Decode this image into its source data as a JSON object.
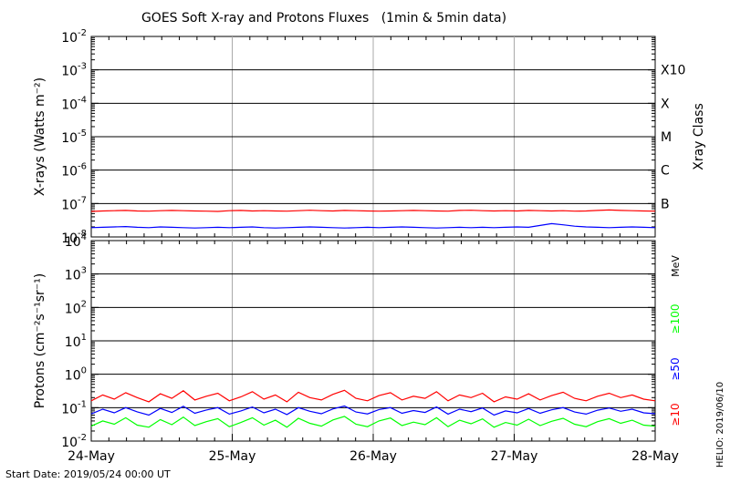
{
  "chart_data": [
    {
      "type": "line",
      "panel": "xray",
      "title": "GOES Soft X-ray and Protons Fluxes   (1min & 5min data)",
      "ylabel": "X-rays (Watts m⁻²)",
      "right_label": "Xray Class",
      "y_scale": "log",
      "ylim": [
        "1e-8",
        "1e-2"
      ],
      "y_ticks": [
        {
          "base": "10",
          "exp": "-2",
          "value": 0.01
        },
        {
          "base": "10",
          "exp": "-3",
          "value": 0.001
        },
        {
          "base": "10",
          "exp": "-4",
          "value": 0.0001
        },
        {
          "base": "10",
          "exp": "-5",
          "value": 1e-05
        },
        {
          "base": "10",
          "exp": "-6",
          "value": 1e-06
        },
        {
          "base": "10",
          "exp": "-7",
          "value": 1e-07
        },
        {
          "base": "10",
          "exp": "-8",
          "value": 1e-08
        }
      ],
      "class_labels": [
        {
          "label": "X10",
          "value": 0.001
        },
        {
          "label": "X",
          "value": 0.0001
        },
        {
          "label": "M",
          "value": 1e-05
        },
        {
          "label": "C",
          "value": 1e-06
        },
        {
          "label": "B",
          "value": 1e-07
        }
      ],
      "series": [
        {
          "color": "#ff0000",
          "values": [
            5.8e-08,
            6e-08,
            6.1e-08,
            6.2e-08,
            6e-08,
            5.9e-08,
            6.1e-08,
            6.2e-08,
            6.1e-08,
            6e-08,
            5.9e-08,
            5.8e-08,
            6.1e-08,
            6.2e-08,
            6e-08,
            6.1e-08,
            6e-08,
            5.9e-08,
            6.1e-08,
            6.3e-08,
            6.1e-08,
            6e-08,
            6.2e-08,
            6.1e-08,
            6e-08,
            5.9e-08,
            6e-08,
            6.1e-08,
            6.2e-08,
            6.1e-08,
            6e-08,
            5.9e-08,
            6.2e-08,
            6.3e-08,
            6.1e-08,
            6e-08,
            6.1e-08,
            6e-08,
            6.2e-08,
            6.1e-08,
            6e-08,
            6.1e-08,
            5.9e-08,
            6e-08,
            6.2e-08,
            6.4e-08,
            6.2e-08,
            6.1e-08,
            6e-08,
            5.9e-08
          ]
        },
        {
          "color": "#0000ff",
          "values": [
            1.9e-08,
            1.95e-08,
            2e-08,
            2.05e-08,
            1.95e-08,
            1.9e-08,
            2e-08,
            1.95e-08,
            1.9e-08,
            1.85e-08,
            1.9e-08,
            1.95e-08,
            1.9e-08,
            1.95e-08,
            2e-08,
            1.9e-08,
            1.85e-08,
            1.9e-08,
            1.95e-08,
            2e-08,
            1.95e-08,
            1.9e-08,
            1.85e-08,
            1.9e-08,
            1.95e-08,
            1.9e-08,
            1.95e-08,
            2e-08,
            1.95e-08,
            1.9e-08,
            1.85e-08,
            1.9e-08,
            1.95e-08,
            1.9e-08,
            1.95e-08,
            1.9e-08,
            1.95e-08,
            2e-08,
            1.95e-08,
            2.2e-08,
            2.5e-08,
            2.3e-08,
            2.1e-08,
            2e-08,
            1.95e-08,
            1.9e-08,
            1.95e-08,
            2e-08,
            1.95e-08,
            1.9e-08
          ]
        }
      ]
    },
    {
      "type": "line",
      "panel": "protons",
      "ylabel": "Protons (cm⁻²s⁻¹sr⁻¹)",
      "y_scale": "log",
      "ylim": [
        "1e-2",
        "1e4"
      ],
      "y_ticks": [
        {
          "base": "10",
          "exp": "4",
          "value": 10000.0
        },
        {
          "base": "10",
          "exp": "3",
          "value": 1000.0
        },
        {
          "base": "10",
          "exp": "2",
          "value": 100.0
        },
        {
          "base": "10",
          "exp": "1",
          "value": 10.0
        },
        {
          "base": "10",
          "exp": "0",
          "value": 1.0
        },
        {
          "base": "10",
          "exp": "-1",
          "value": 0.1
        },
        {
          "base": "10",
          "exp": "-2",
          "value": 0.01
        }
      ],
      "threshold_line": 10,
      "right_labels": [
        {
          "text": "MeV",
          "color": "#000000"
        },
        {
          "text": "≥100",
          "color": "#00ff00"
        },
        {
          "text": "≥50",
          "color": "#0000ff"
        },
        {
          "text": "≥10",
          "color": "#ff0000"
        }
      ],
      "series": [
        {
          "name": "≥10",
          "color": "#ff0000",
          "values": [
            0.16,
            0.24,
            0.18,
            0.28,
            0.2,
            0.15,
            0.26,
            0.19,
            0.32,
            0.17,
            0.22,
            0.27,
            0.16,
            0.21,
            0.3,
            0.18,
            0.24,
            0.15,
            0.29,
            0.2,
            0.17,
            0.25,
            0.33,
            0.19,
            0.16,
            0.23,
            0.28,
            0.17,
            0.22,
            0.19,
            0.3,
            0.16,
            0.24,
            0.2,
            0.27,
            0.15,
            0.21,
            0.18,
            0.26,
            0.17,
            0.23,
            0.29,
            0.19,
            0.16,
            0.22,
            0.27,
            0.2,
            0.24,
            0.18,
            0.16
          ]
        },
        {
          "name": "≥50",
          "color": "#0000ff",
          "values": [
            0.065,
            0.09,
            0.07,
            0.1,
            0.075,
            0.06,
            0.095,
            0.072,
            0.11,
            0.068,
            0.085,
            0.1,
            0.064,
            0.08,
            0.105,
            0.07,
            0.09,
            0.062,
            0.1,
            0.078,
            0.066,
            0.092,
            0.112,
            0.074,
            0.065,
            0.088,
            0.1,
            0.068,
            0.082,
            0.072,
            0.105,
            0.064,
            0.09,
            0.076,
            0.098,
            0.06,
            0.08,
            0.07,
            0.094,
            0.068,
            0.086,
            0.1,
            0.074,
            0.064,
            0.084,
            0.098,
            0.078,
            0.09,
            0.07,
            0.066
          ]
        },
        {
          "name": "≥100",
          "color": "#00ff00",
          "values": [
            0.028,
            0.04,
            0.032,
            0.05,
            0.03,
            0.026,
            0.044,
            0.031,
            0.052,
            0.029,
            0.038,
            0.047,
            0.027,
            0.036,
            0.05,
            0.03,
            0.042,
            0.026,
            0.048,
            0.034,
            0.028,
            0.043,
            0.055,
            0.032,
            0.027,
            0.04,
            0.049,
            0.029,
            0.037,
            0.031,
            0.05,
            0.027,
            0.042,
            0.033,
            0.046,
            0.026,
            0.036,
            0.03,
            0.045,
            0.029,
            0.039,
            0.048,
            0.032,
            0.027,
            0.038,
            0.047,
            0.034,
            0.042,
            0.03,
            0.028
          ]
        }
      ]
    }
  ],
  "x_axis": {
    "ticks": [
      "24-May",
      "25-May",
      "26-May",
      "27-May",
      "28-May"
    ],
    "start_date_label": "Start Date: 2019/05/24 00:00 UT"
  },
  "credit": "HELIO: 2019/06/10"
}
